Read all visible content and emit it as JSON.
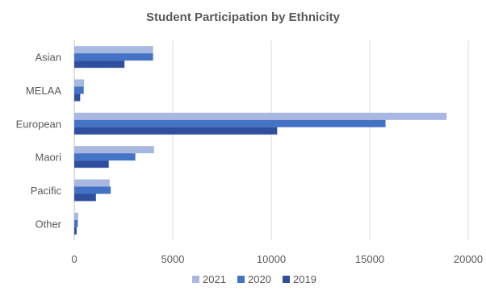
{
  "chart_data": {
    "type": "bar",
    "orientation": "horizontal",
    "title": "Student Participation by Ethnicity",
    "categories": [
      "Asian",
      "MELAA",
      "European",
      "Maori",
      "Pacific",
      "Other"
    ],
    "series": [
      {
        "name": "2021",
        "color": "#a9b8e0",
        "values": [
          4000,
          500,
          18900,
          4050,
          1800,
          200
        ]
      },
      {
        "name": "2020",
        "color": "#4472c4",
        "values": [
          4000,
          480,
          15800,
          3100,
          1850,
          180
        ]
      },
      {
        "name": "2019",
        "color": "#2f4f9e",
        "values": [
          2550,
          300,
          10300,
          1750,
          1100,
          120
        ]
      }
    ],
    "x_ticks": [
      "0",
      "5000",
      "10000",
      "15000",
      "20000"
    ],
    "xlim": [
      0,
      20000
    ],
    "grid": "vertical",
    "legend": "bottom"
  }
}
